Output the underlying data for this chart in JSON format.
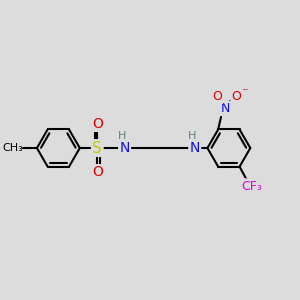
{
  "bg_color": "#dcdcdc",
  "bond_color": "#000000",
  "bond_lw": 1.5,
  "atom_colors": {
    "C": "#000000",
    "H": "#5f8080",
    "N": "#1010e0",
    "O": "#e00000",
    "S": "#c8c800",
    "F": "#e000e0"
  },
  "figsize": [
    3.0,
    3.0
  ],
  "dpi": 100
}
